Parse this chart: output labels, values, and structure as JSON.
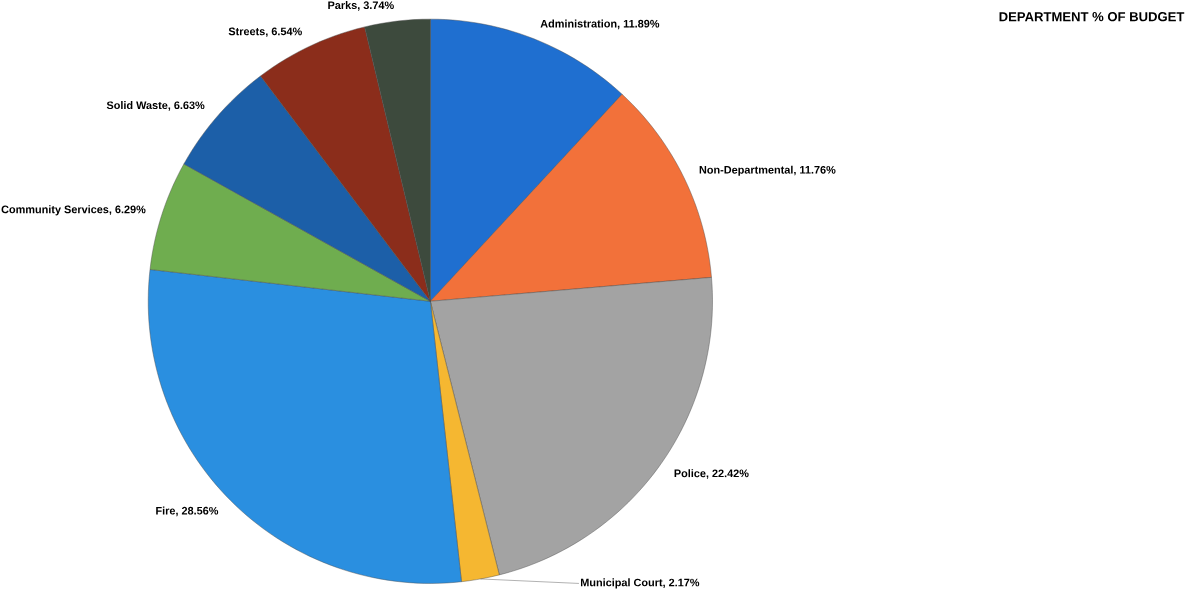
{
  "chart_data": {
    "type": "pie",
    "title": "DEPARTMENT % OF BUDGET",
    "categories": [
      "Administration",
      "Non-Departmental",
      "Police",
      "Municipal Court",
      "Fire",
      "Community Services",
      "Solid Waste",
      "Streets",
      "Parks"
    ],
    "values": [
      11.89,
      11.76,
      22.42,
      2.17,
      28.56,
      6.29,
      6.63,
      6.54,
      3.74
    ],
    "value_labels": [
      ", 11.89%",
      ", 11.76%",
      ", 22.42%",
      ", 2.17%",
      ", 28.56%",
      ", 6.29%",
      ", 6.63%",
      ", 6.54%",
      ", 3.74%"
    ],
    "colors": [
      "#1f6fd0",
      "#f2713a",
      "#a3a3a3",
      "#f5b731",
      "#2a8fe0",
      "#6fad4f",
      "#1c5fa8",
      "#8b2d1b",
      "#3d4a3d"
    ]
  }
}
